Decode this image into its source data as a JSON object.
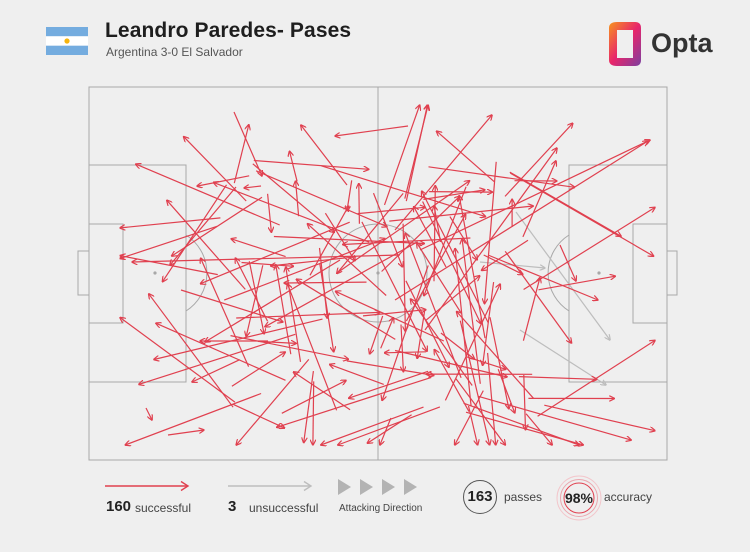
{
  "header": {
    "title": "Leandro Paredes- Pases",
    "subtitle": "Argentina 3-0 El Salvador",
    "flag_icon": "argentina-flag-icon",
    "logo_text": "Opta",
    "logo_icon": "opta-logo-icon"
  },
  "colors": {
    "successful": "#e0404f",
    "unsuccessful": "#bdbdbd",
    "pitch_lines": "#a8a8a8",
    "background": "#efefef"
  },
  "legend": {
    "successful_count": "160",
    "successful_label": "successful",
    "unsuccessful_count": "3",
    "unsuccessful_label": "unsuccessful",
    "direction_label": "Attacking Direction",
    "total_passes": "163",
    "passes_label": "passes",
    "accuracy": "98%",
    "accuracy_label": "accuracy"
  }
}
